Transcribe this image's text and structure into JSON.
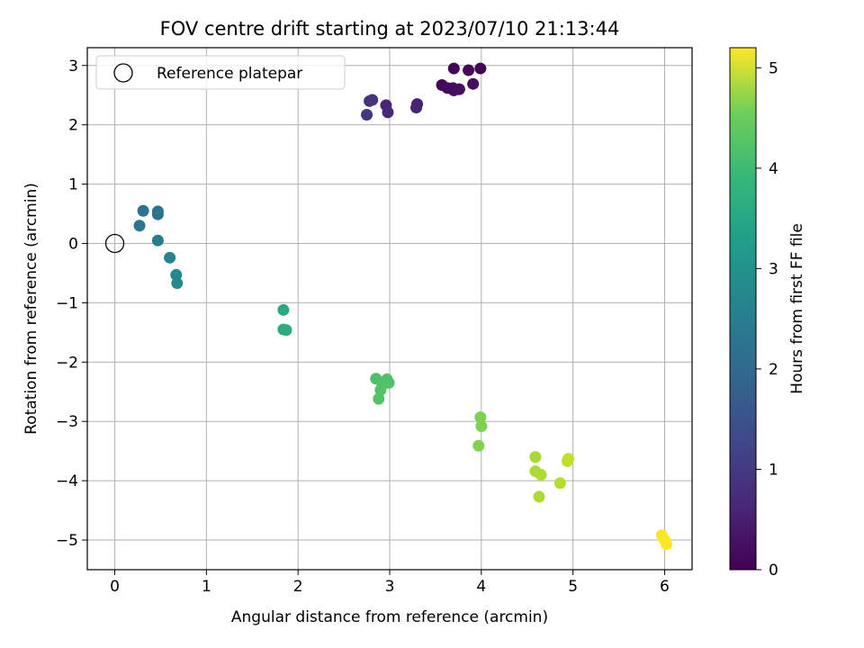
{
  "chart_data": {
    "type": "scatter",
    "title": "FOV centre drift starting at 2023/07/10 21:13:44",
    "xlabel": "Angular distance from reference (arcmin)",
    "ylabel": "Rotation from reference (arcmin)",
    "xlim": [
      -0.3,
      6.3
    ],
    "ylim": [
      -5.5,
      3.3
    ],
    "xticks": [
      0,
      1,
      2,
      3,
      4,
      5,
      6
    ],
    "yticks": [
      3,
      2,
      1,
      0,
      -1,
      -2,
      -3,
      -4,
      -5
    ],
    "grid": true,
    "legend": {
      "placement": "top-left",
      "entries": [
        "Reference platepar"
      ]
    },
    "reference_point": {
      "x": 0,
      "y": 0
    },
    "colorbar": {
      "label": "Hours from first FF file",
      "range": [
        0,
        5.2
      ],
      "ticks": [
        0,
        1,
        2,
        3,
        4,
        5
      ],
      "colormap": "viridis"
    },
    "points": [
      {
        "x": 3.7,
        "y": 2.95,
        "h": 0.05
      },
      {
        "x": 3.99,
        "y": 2.95,
        "h": 0.05
      },
      {
        "x": 3.86,
        "y": 2.92,
        "h": 0.08
      },
      {
        "x": 3.57,
        "y": 2.67,
        "h": 0.12
      },
      {
        "x": 3.63,
        "y": 2.62,
        "h": 0.14
      },
      {
        "x": 3.7,
        "y": 2.58,
        "h": 0.15
      },
      {
        "x": 3.76,
        "y": 2.6,
        "h": 0.18
      },
      {
        "x": 3.69,
        "y": 2.62,
        "h": 0.16
      },
      {
        "x": 3.91,
        "y": 2.69,
        "h": 0.2
      },
      {
        "x": 3.3,
        "y": 2.35,
        "h": 0.5
      },
      {
        "x": 3.29,
        "y": 2.29,
        "h": 0.52
      },
      {
        "x": 2.96,
        "y": 2.33,
        "h": 0.55
      },
      {
        "x": 2.98,
        "y": 2.21,
        "h": 0.6
      },
      {
        "x": 2.78,
        "y": 2.4,
        "h": 0.75
      },
      {
        "x": 2.81,
        "y": 2.42,
        "h": 0.78
      },
      {
        "x": 2.75,
        "y": 2.17,
        "h": 0.82
      },
      {
        "x": 0.31,
        "y": 0.55,
        "h": 1.95
      },
      {
        "x": 0.47,
        "y": 0.54,
        "h": 1.98
      },
      {
        "x": 0.47,
        "y": 0.49,
        "h": 2.0
      },
      {
        "x": 0.27,
        "y": 0.3,
        "h": 2.05
      },
      {
        "x": 0.47,
        "y": 0.05,
        "h": 2.15
      },
      {
        "x": 0.6,
        "y": -0.24,
        "h": 2.35
      },
      {
        "x": 0.67,
        "y": -0.53,
        "h": 2.45
      },
      {
        "x": 0.68,
        "y": -0.67,
        "h": 2.5
      },
      {
        "x": 1.84,
        "y": -1.12,
        "h": 3.15
      },
      {
        "x": 1.84,
        "y": -1.45,
        "h": 3.2
      },
      {
        "x": 1.87,
        "y": -1.46,
        "h": 3.22
      },
      {
        "x": 2.85,
        "y": -2.28,
        "h": 3.7
      },
      {
        "x": 2.97,
        "y": -2.29,
        "h": 3.72
      },
      {
        "x": 2.99,
        "y": -2.35,
        "h": 3.73
      },
      {
        "x": 2.92,
        "y": -2.38,
        "h": 3.74
      },
      {
        "x": 2.9,
        "y": -2.47,
        "h": 3.76
      },
      {
        "x": 2.88,
        "y": -2.62,
        "h": 3.78
      },
      {
        "x": 3.99,
        "y": -2.93,
        "h": 4.15
      },
      {
        "x": 4.0,
        "y": -3.08,
        "h": 4.18
      },
      {
        "x": 3.97,
        "y": -3.41,
        "h": 4.2
      },
      {
        "x": 4.59,
        "y": -3.6,
        "h": 4.5
      },
      {
        "x": 4.59,
        "y": -3.84,
        "h": 4.52
      },
      {
        "x": 4.65,
        "y": -3.9,
        "h": 4.55
      },
      {
        "x": 4.63,
        "y": -4.27,
        "h": 4.55
      },
      {
        "x": 4.86,
        "y": -4.04,
        "h": 4.62
      },
      {
        "x": 4.94,
        "y": -3.67,
        "h": 4.7
      },
      {
        "x": 4.95,
        "y": -3.63,
        "h": 4.72
      },
      {
        "x": 5.97,
        "y": -4.92,
        "h": 5.18
      },
      {
        "x": 6.0,
        "y": -5.0,
        "h": 5.2
      },
      {
        "x": 6.02,
        "y": -5.07,
        "h": 5.2
      }
    ]
  }
}
